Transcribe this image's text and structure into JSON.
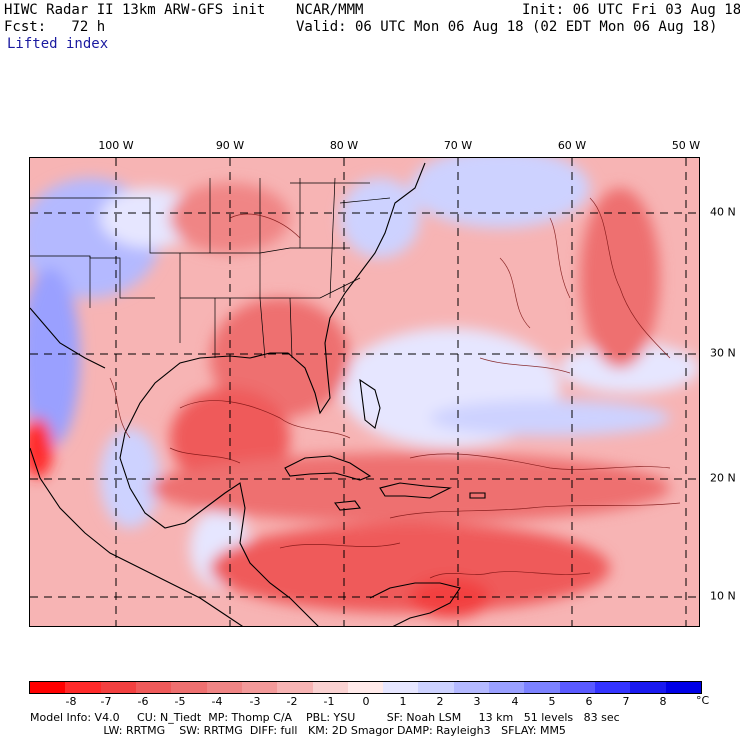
{
  "header": {
    "title": "HIWC Radar II 13km ARW-GFS init",
    "center": "NCAR/MMM",
    "init": "Init: 06 UTC Fri 03 Aug 18",
    "fcst": "Fcst:   72 h",
    "valid": "Valid: 06 UTC Mon 06 Aug 18 (02 EDT Mon 06 Aug 18)",
    "field": "Lifted index"
  },
  "lon_labels": [
    "100 W",
    "90 W",
    "80 W",
    "70 W",
    "60 W",
    "50 W"
  ],
  "lat_labels": [
    "40 N",
    "30 N",
    "20 N",
    "10 N"
  ],
  "legend": {
    "ticks": [
      "-8",
      "-7",
      "-6",
      "-5",
      "-4",
      "-3",
      "-2",
      "-1",
      "0",
      "1",
      "2",
      "3",
      "4",
      "5",
      "6",
      "7",
      "8"
    ],
    "unit": "°C",
    "colors": [
      "#ff0000",
      "#ff2a2a",
      "#f24040",
      "#ef5a5a",
      "#ee7070",
      "#f08585",
      "#f39a9a",
      "#f7b4b4",
      "#fad2d2",
      "#ffeaea",
      "#e6e6ff",
      "#cdd2ff",
      "#b4b9ff",
      "#9aa0ff",
      "#7c82ff",
      "#5a5aff",
      "#3434ff",
      "#1a1af0",
      "#0000e6"
    ]
  },
  "model_info": {
    "line1": "Model Info: V4.0     CU: N_Tiedt  MP: Thomp C/A    PBL: YSU         SF: Noah LSM     13 km   51 levels   83 sec",
    "line2": "                     LW: RRTMG    SW: RRTMG  DIFF: full   KM: 2D Smagor DAMP: Rayleigh3   SFLAY: MM5"
  }
}
